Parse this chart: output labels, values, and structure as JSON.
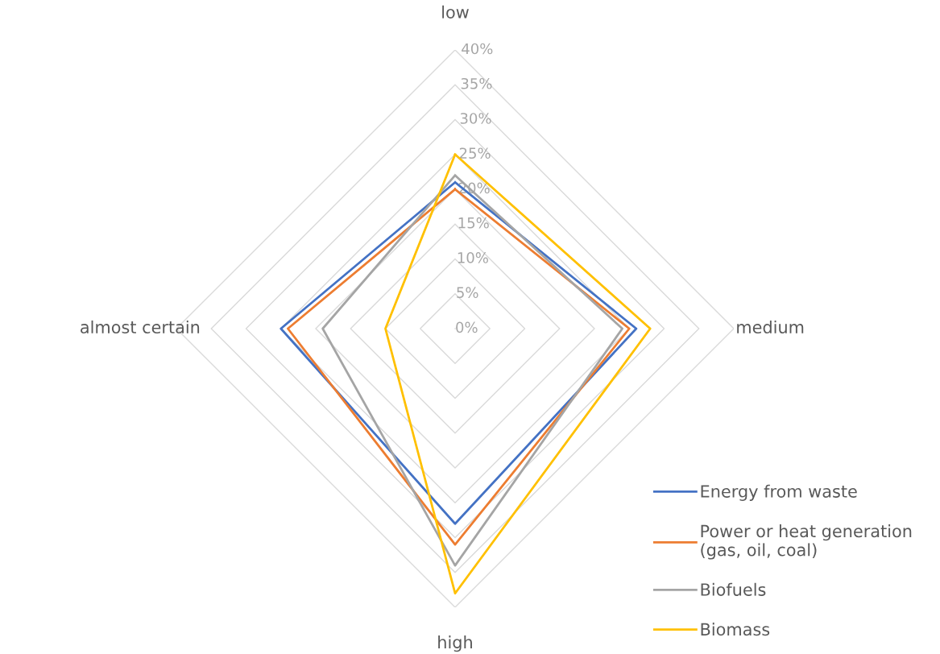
{
  "chart_data": {
    "type": "radar",
    "categories": [
      "low",
      "medium",
      "high",
      "almost certain"
    ],
    "series": [
      {
        "name": "Energy from waste",
        "color": "#4472c4",
        "values": [
          21,
          26,
          28,
          25
        ]
      },
      {
        "name": "Power or heat generation\n(gas, oil, coal)",
        "color": "#ed7d31",
        "values": [
          20,
          25,
          31,
          24
        ]
      },
      {
        "name": "Biofuels",
        "color": "#a5a5a5",
        "values": [
          22,
          24,
          34,
          19
        ]
      },
      {
        "name": "Biomass",
        "color": "#ffc000",
        "values": [
          25,
          28,
          38,
          10
        ]
      }
    ],
    "ylim": [
      0,
      40
    ],
    "yticks": [
      {
        "value": 0,
        "label": "0%"
      },
      {
        "value": 5,
        "label": "5%"
      },
      {
        "value": 10,
        "label": "10%"
      },
      {
        "value": 15,
        "label": "15%"
      },
      {
        "value": 20,
        "label": "20%"
      },
      {
        "value": 25,
        "label": "25%"
      },
      {
        "value": 30,
        "label": "30%"
      },
      {
        "value": 35,
        "label": "35%"
      },
      {
        "value": 40,
        "label": "40%"
      }
    ],
    "grid": true,
    "legend": "bottom right",
    "marker": "none",
    "line_style": "solid"
  }
}
